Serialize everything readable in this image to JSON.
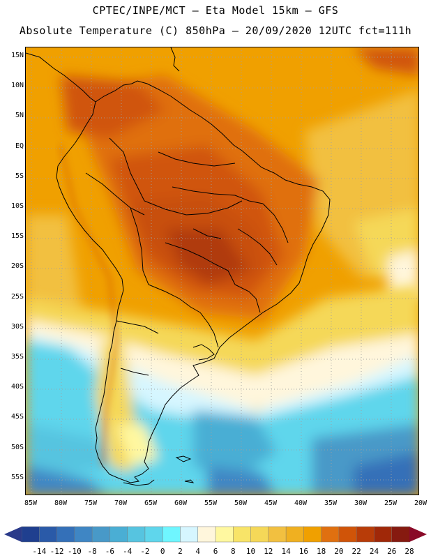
{
  "header": {
    "line1": "CPTEC/INPE/MCT –  Eta Model 15km – GFS",
    "line2": "Absolute Temperature (C) 850hPa – 20/09/2020 12UTC fct=111h"
  },
  "map": {
    "latitude_labels": [
      "15N",
      "10N",
      "5N",
      "EQ",
      "5S",
      "10S",
      "15S",
      "20S",
      "25S",
      "30S",
      "35S",
      "40S",
      "45S",
      "50S",
      "55S"
    ],
    "longitude_labels": [
      "85W",
      "80W",
      "75W",
      "70W",
      "65W",
      "60W",
      "55W",
      "50W",
      "45W",
      "40W",
      "35W",
      "30W",
      "25W",
      "20W"
    ],
    "colors": {
      "ocean_cold": "#5ad6ea",
      "ocean_deep": "#2f8fd0",
      "mid_lat_warm": "#f0b030",
      "tropic_warm": "#f0a000",
      "hot_core": "#c8500c",
      "hottest": "#b03a08"
    }
  },
  "colorbar": {
    "labels": [
      "-14",
      "-12",
      "-10",
      "-8",
      "-6",
      "-4",
      "-2",
      "0",
      "2",
      "4",
      "6",
      "8",
      "10",
      "12",
      "14",
      "16",
      "18",
      "20",
      "22",
      "24",
      "26",
      "28"
    ],
    "colors": [
      "#1f3f8f",
      "#2a5aa8",
      "#3470b8",
      "#3f86c4",
      "#4899c8",
      "#4aaed4",
      "#56c4e0",
      "#5fd6ec",
      "#6ff6ff",
      "#d6f6ff",
      "#fff6dc",
      "#fff8a0",
      "#f8e468",
      "#f5d858",
      "#f2c040",
      "#f0b020",
      "#f0a000",
      "#e07010",
      "#d05408",
      "#b83c08",
      "#a02808",
      "#861a10"
    ],
    "low_arrow_color": "#2a3a8a",
    "high_arrow_color": "#8a0a28"
  }
}
